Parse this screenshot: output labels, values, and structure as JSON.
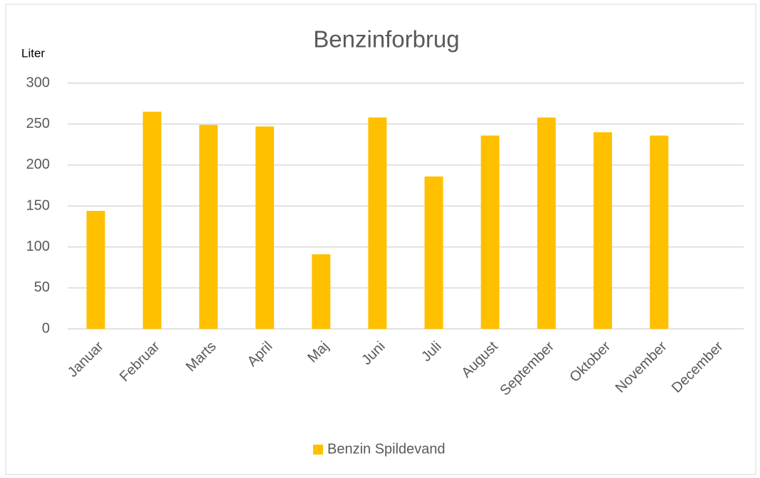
{
  "chart_data": {
    "type": "bar",
    "title": "Benzinforbrug",
    "y_label": "Liter",
    "categories": [
      "Januar",
      "Februar",
      "Marts",
      "April",
      "Maj",
      "Juni",
      "Juli",
      "August",
      "September",
      "Oktober",
      "November",
      "December"
    ],
    "series": [
      {
        "name": "Benzin Spildevand",
        "color": "#ffc000",
        "values": [
          144,
          265,
          249,
          247,
          91,
          258,
          186,
          236,
          258,
          240,
          236,
          null
        ]
      }
    ],
    "ylim": [
      0,
      300
    ],
    "yticks": [
      0,
      50,
      100,
      150,
      200,
      250,
      300
    ],
    "grid": true,
    "legend": "bottom"
  }
}
